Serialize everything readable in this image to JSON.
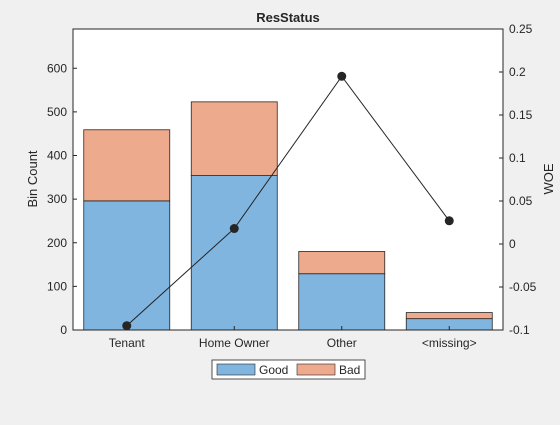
{
  "chart_data": {
    "type": "bar",
    "stacked": true,
    "title": "ResStatus",
    "categories": [
      "Tenant",
      "Home Owner",
      "Other",
      "<missing>"
    ],
    "ylabel": "Bin Count",
    "y2label": "WOE",
    "ylim": [
      0,
      690
    ],
    "y2lim": [
      -0.1,
      0.25
    ],
    "yticks": [
      0,
      100,
      200,
      300,
      400,
      500,
      600
    ],
    "y2ticks": [
      -0.1,
      -0.05,
      0,
      0.05,
      0.1,
      0.15,
      0.2,
      0.25
    ],
    "y2tick_labels": [
      "-0.1",
      "-0.05",
      "0",
      "0.05",
      "0.1",
      "0.15",
      "0.2",
      "0.25"
    ],
    "series": [
      {
        "name": "Good",
        "values": [
          296,
          354,
          129,
          26
        ],
        "color": "#80b5e0"
      },
      {
        "name": "Bad",
        "values": [
          163,
          169,
          51,
          14
        ],
        "color": "#edaa8c"
      }
    ],
    "line": {
      "axis": "right",
      "values": [
        -0.095,
        0.018,
        0.195,
        0.027
      ],
      "color": "#262626"
    },
    "legend": {
      "placement": "bottom-center",
      "entries": [
        "Good",
        "Bad"
      ]
    },
    "grid": false
  }
}
